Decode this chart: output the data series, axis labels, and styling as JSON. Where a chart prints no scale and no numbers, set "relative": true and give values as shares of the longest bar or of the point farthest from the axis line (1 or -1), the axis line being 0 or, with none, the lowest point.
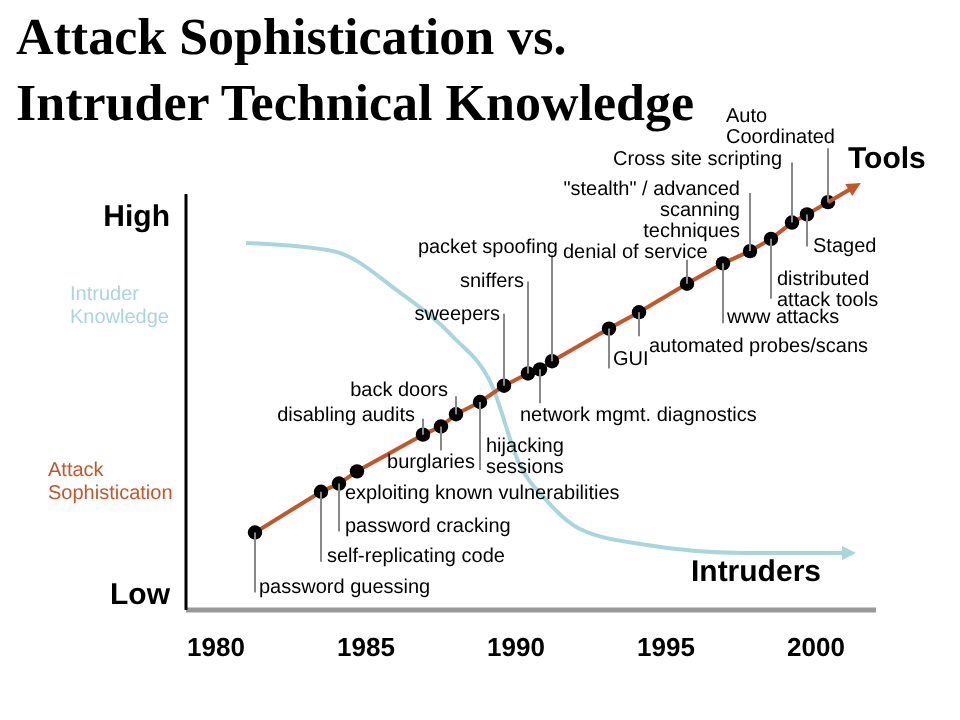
{
  "chart_data": {
    "type": "line",
    "title": "Attack Sophistication vs. Intruder Technical Knowledge",
    "relative": true,
    "series": [
      {
        "name": "Intruder Knowledge",
        "color": "#a8d6dc",
        "marker": "none",
        "x": [
          1981.0,
          1983.9,
          1986.1,
          1987.9,
          1989.2,
          1990.1,
          1991.0,
          1992.1,
          1994.3,
          1997.6,
          2001.0
        ],
        "values": [
          0.9,
          0.88,
          0.78,
          0.67,
          0.55,
          0.36,
          0.27,
          0.2,
          0.16,
          0.14,
          0.14
        ]
      },
      {
        "name": "Attack Sophistication",
        "color": "#c0582c",
        "marker": "circle",
        "x": [
          1981.3,
          1983.5,
          1984.1,
          1984.7,
          1986.9,
          1987.5,
          1988.0,
          1988.8,
          1989.6,
          1990.4,
          1990.8,
          1991.2,
          1993.1,
          1994.1,
          1995.7,
          1996.9,
          1997.8,
          1998.5,
          1999.2,
          1999.7,
          2000.4
        ],
        "values": [
          0.19,
          0.29,
          0.31,
          0.34,
          0.43,
          0.45,
          0.48,
          0.51,
          0.55,
          0.58,
          0.59,
          0.61,
          0.69,
          0.73,
          0.8,
          0.85,
          0.88,
          0.91,
          0.95,
          0.97,
          1.0
        ]
      }
    ],
    "xlim": [
      1979,
      2002
    ],
    "xticks": [
      1980,
      1985,
      1990,
      1995,
      2000
    ],
    "grid": false,
    "legend": false,
    "line_style": "solid",
    "annotations": [
      {
        "text": "password guessing",
        "x": 1981.3,
        "y": 0.19
      },
      {
        "text": "self-replicating code",
        "x": 1983.5,
        "y": 0.29
      },
      {
        "text": "password cracking",
        "x": 1984.1,
        "y": 0.31
      },
      {
        "text": "exploiting known vulnerabilities",
        "x": 1984.7,
        "y": 0.34
      },
      {
        "text": "disabling audits",
        "x": 1986.9,
        "y": 0.43
      },
      {
        "text": "burglaries",
        "x": 1987.5,
        "y": 0.45
      },
      {
        "text": "back doors",
        "x": 1988.0,
        "y": 0.48
      },
      {
        "text": "hijacking sessions",
        "x": 1988.8,
        "y": 0.51
      },
      {
        "text": "sweepers",
        "x": 1989.6,
        "y": 0.55
      },
      {
        "text": "sniffers",
        "x": 1990.4,
        "y": 0.58
      },
      {
        "text": "network mgmt. diagnostics",
        "x": 1990.8,
        "y": 0.59
      },
      {
        "text": "packet spoofing",
        "x": 1991.2,
        "y": 0.61
      },
      {
        "text": "GUI",
        "x": 1993.1,
        "y": 0.69
      },
      {
        "text": "automated probes/scans",
        "x": 1994.1,
        "y": 0.73
      },
      {
        "text": "denial of service",
        "x": 1995.7,
        "y": 0.8
      },
      {
        "text": "www attacks",
        "x": 1996.9,
        "y": 0.85
      },
      {
        "text": "\"stealth\" / advanced scanning techniques",
        "x": 1997.8,
        "y": 0.88
      },
      {
        "text": "distributed attack tools",
        "x": 1998.5,
        "y": 0.91
      },
      {
        "text": "Cross site scripting",
        "x": 1999.2,
        "y": 0.95
      },
      {
        "text": "Staged",
        "x": 1999.7,
        "y": 0.97
      },
      {
        "text": "Auto Coordinated",
        "x": 2000.4,
        "y": 1.0
      },
      {
        "text": "Tools",
        "x": 2000.4,
        "y": 1.0
      },
      {
        "text": "Intruders",
        "x": 2001.0,
        "y": 0.14
      },
      "High",
      "Low"
    ]
  }
}
